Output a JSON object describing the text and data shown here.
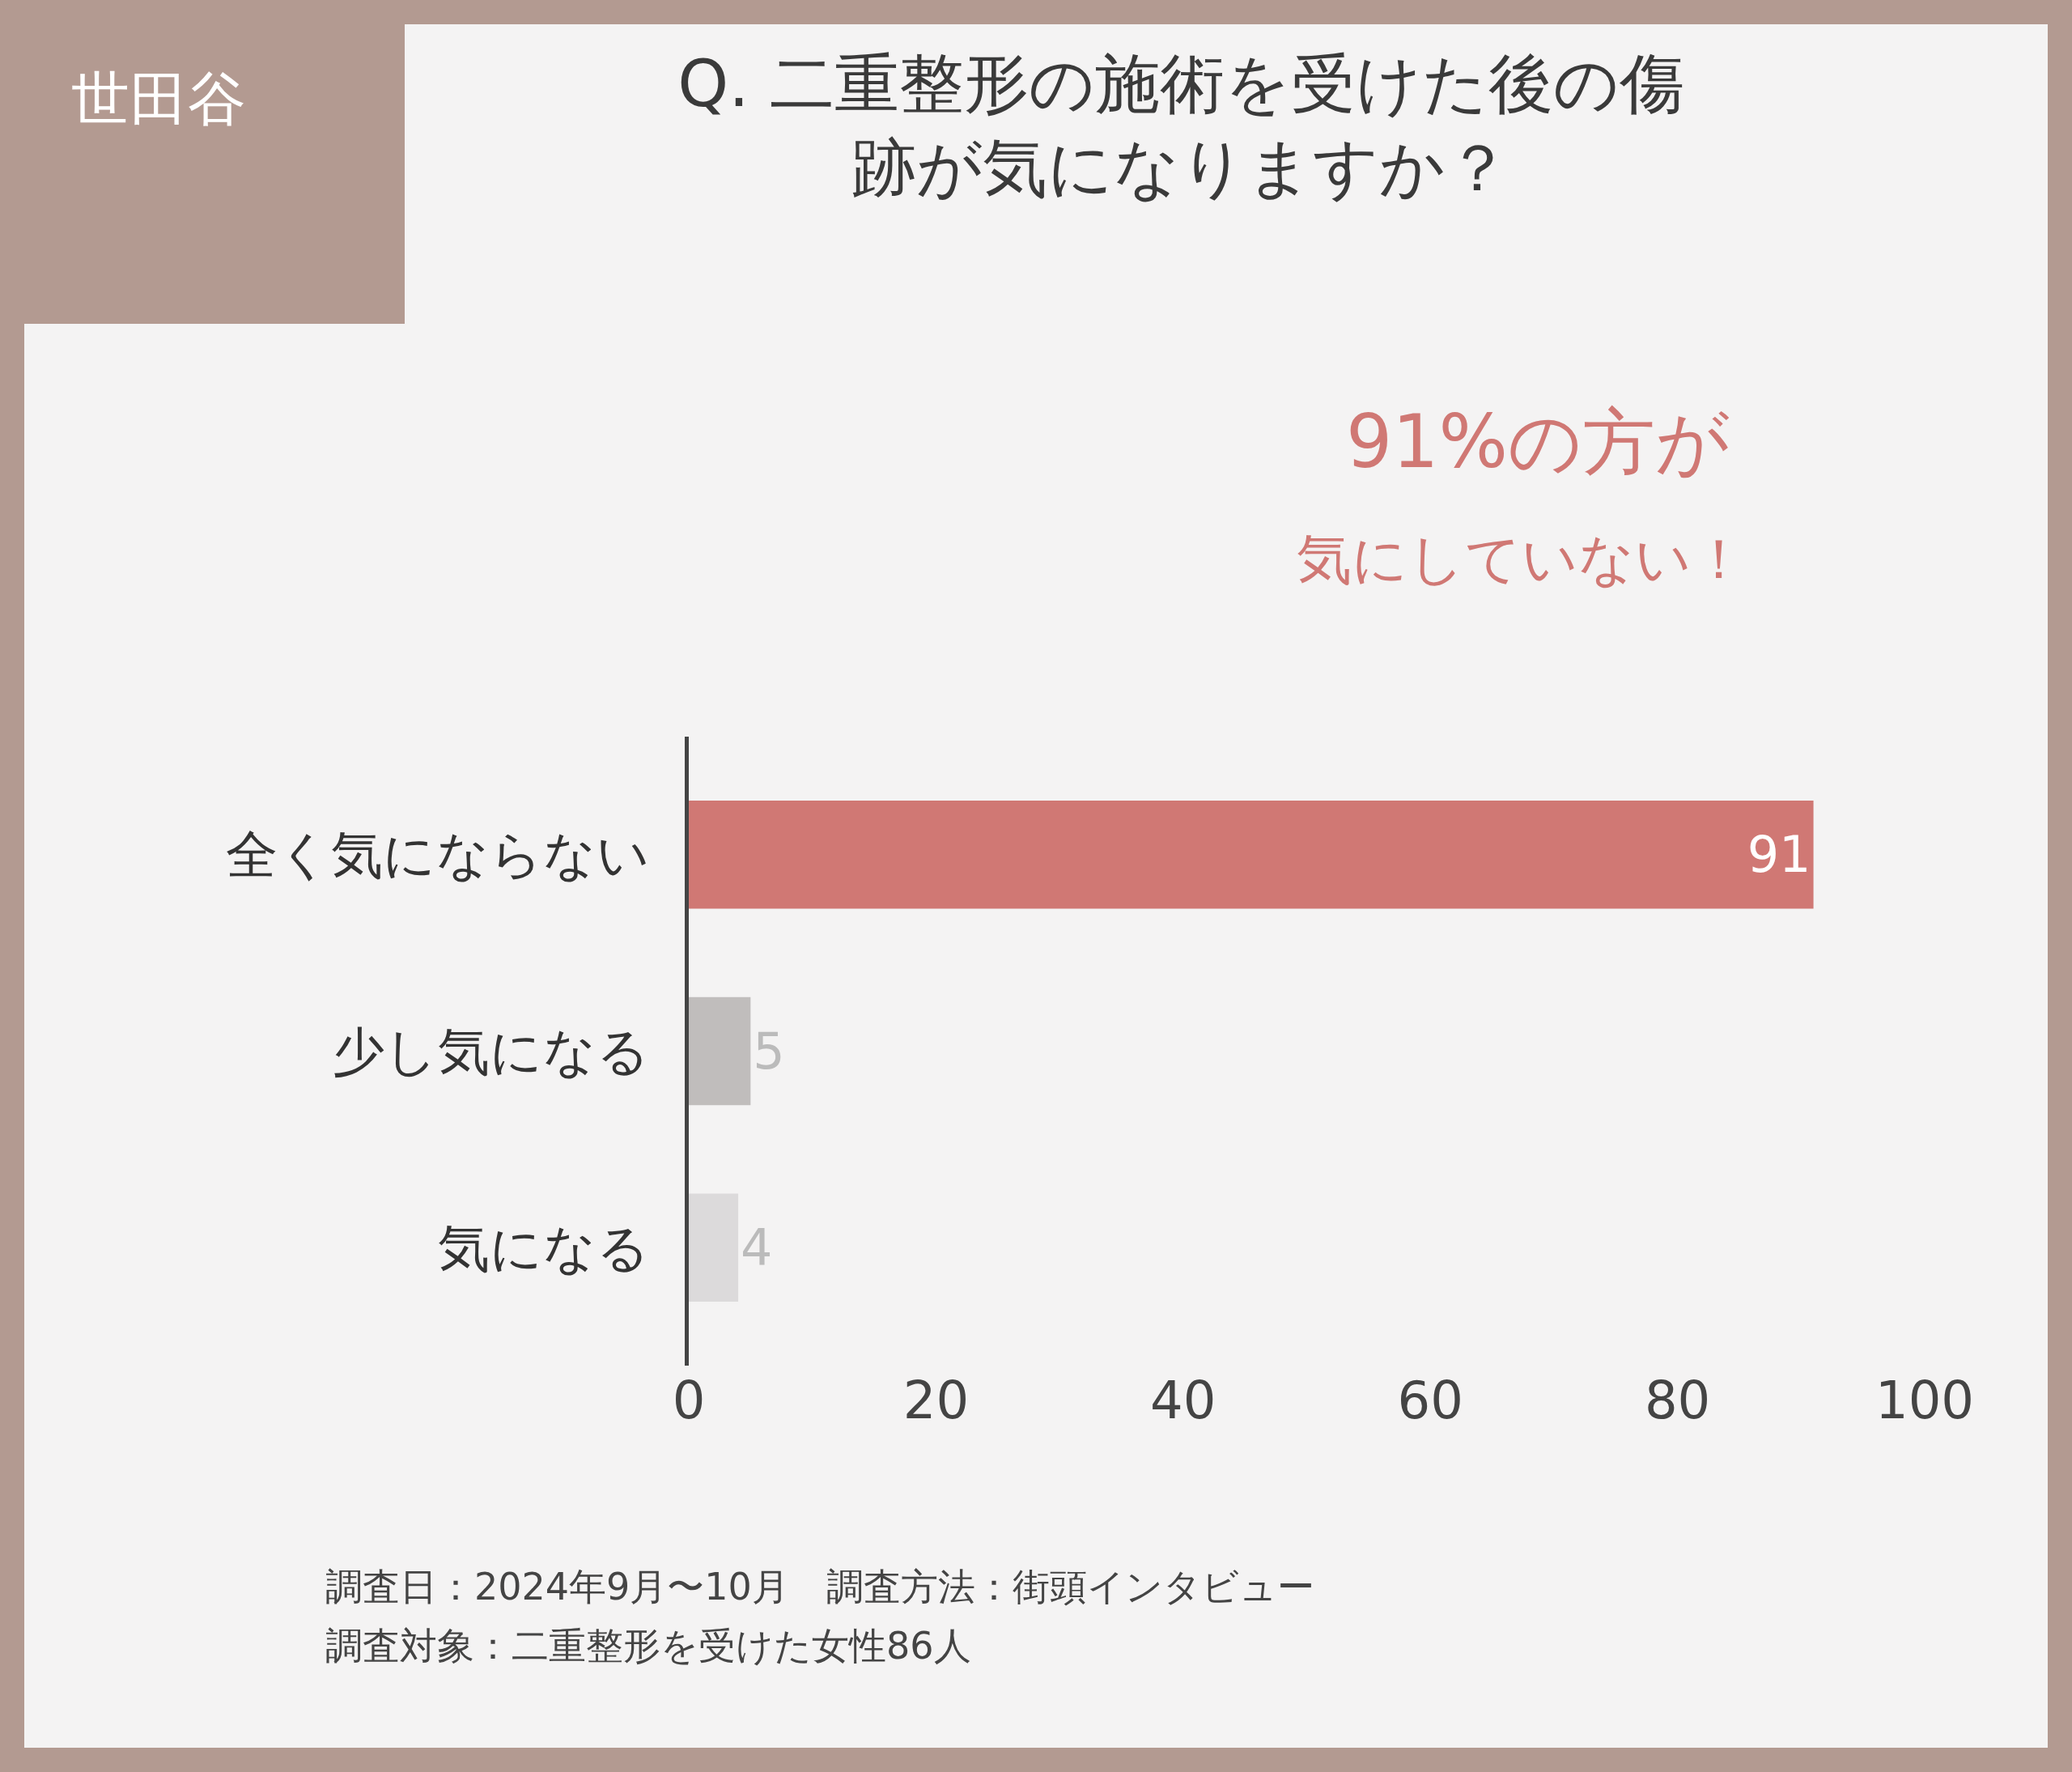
{
  "chart_data": {
    "type": "bar",
    "orientation": "horizontal",
    "title": "Q. 二重整形の施術を受けた後の傷跡が気になりますか？",
    "categories": [
      "全く気にならない",
      "少し気になる",
      "気になる"
    ],
    "values": [
      91,
      5,
      4
    ],
    "colors": [
      "#d07874",
      "#c0bdbc",
      "#dcdadb"
    ],
    "xlim": [
      0,
      100
    ],
    "xticks": [
      0,
      20,
      40,
      60,
      80,
      100
    ],
    "data_labels": true,
    "grid": false,
    "legend": false,
    "annotations": [
      "世田谷",
      "91%の方が",
      "気にしていない！",
      "調査日：2024年9月〜10月　調査方法：街頭インタビュー",
      "調査対象：二重整形を受けた女性86人"
    ]
  }
}
